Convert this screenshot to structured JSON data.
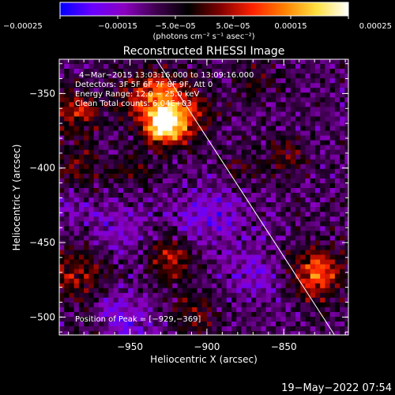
{
  "chart_data": {
    "type": "heatmap",
    "title": "Reconstructed RHESSI Image",
    "xlabel": "Heliocentric X (arcsec)",
    "ylabel": "Heliocentric Y (arcsec)",
    "xlim": [
      -996,
      -808
    ],
    "ylim": [
      -512,
      -327
    ],
    "x_ticks": [
      -950,
      -900,
      -850
    ],
    "x_tick_labels": [
      "−950",
      "−900",
      "−850"
    ],
    "y_ticks": [
      -350,
      -400,
      -450,
      -500
    ],
    "y_tick_labels": [
      "−350",
      "−400",
      "−450",
      "−500"
    ],
    "colorbar": {
      "range": [
        -0.00025,
        0.00025
      ],
      "ticks": [
        -0.00025,
        -0.00015,
        -5e-05,
        5e-05,
        0.00015,
        0.00025
      ],
      "tick_labels": [
        "−0.00025",
        "−0.00015",
        "−5.0e−05",
        "5.0e−05",
        "0.00015",
        "0.00025"
      ],
      "unit_label": "(photons cm⁻² s⁻¹ asec⁻²)",
      "colors": [
        "#0000ff",
        "#6a00ff",
        "#8a00c0",
        "#400050",
        "#000000",
        "#800000",
        "#ff2000",
        "#ff8000",
        "#ffe040",
        "#ffffff"
      ]
    },
    "annotations": [
      "4−Mar−2015 13:03:16.000 to 13:09:16.000",
      "Detectors: 3F 5F 6F 7F 8F 9F, Att 0",
      "Energy Range: 12.0 − 25.0 keV",
      "Clean     Total counts: 6.04E+03"
    ],
    "peak_label": "Position of Peak = [−929,−369]",
    "peak": [
      -929,
      -369
    ],
    "limb_line": [
      [
        -933,
        -327
      ],
      [
        -817,
        -512
      ]
    ],
    "grid": false,
    "legend": "none"
  },
  "footer": {
    "date": "19−May−2022 07:54"
  }
}
